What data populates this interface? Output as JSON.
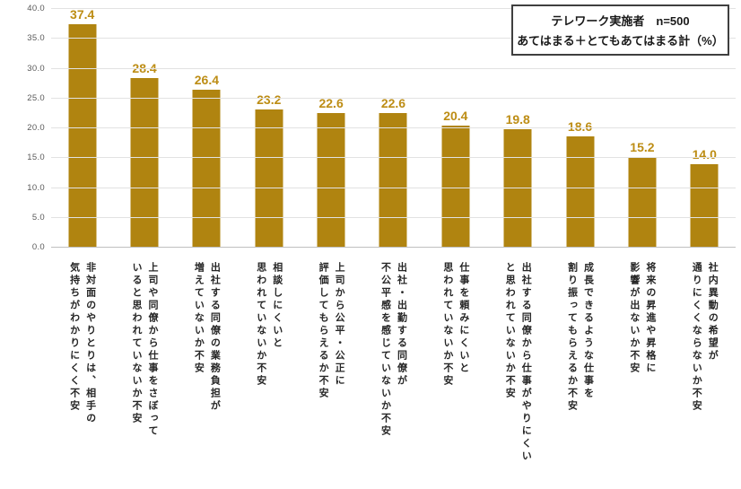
{
  "legend": {
    "line1": "テレワーク実施者　n=500",
    "line2": "あてはまる＋とてもあてはまる計（%）"
  },
  "chart_data": {
    "type": "bar",
    "title": "",
    "xlabel": "",
    "ylabel": "",
    "unit": "%",
    "ylim": [
      0,
      40
    ],
    "ytick_step": 5,
    "ytick_labels": [
      "0.0",
      "5.0",
      "10.0",
      "15.0",
      "20.0",
      "25.0",
      "30.0",
      "35.0",
      "40.0"
    ],
    "grid": true,
    "legend_position": "top-right",
    "legend_text": [
      "テレワーク実施者　n=500",
      "あてはまる＋とてもあてはまる計（%）"
    ],
    "bar_color": "#b08410",
    "value_label_color": "#bd8d15",
    "categories": [
      [
        "非対面のやりとりは、相手の",
        "気持ちがわかりにくく不安"
      ],
      [
        "上司や同僚から仕事をさぼって",
        "いると思われていないか不安"
      ],
      [
        "出社する同僚の業務負担が",
        "増えていないか不安"
      ],
      [
        "相談しにくいと",
        "思われていないか不安"
      ],
      [
        "上司から公平・公正に",
        "評価してもらえるか不安"
      ],
      [
        "出社・出勤する同僚が",
        "不公平感を感じていないか不安"
      ],
      [
        "仕事を頼みにくいと",
        "思われていないか不安"
      ],
      [
        "出社する同僚から仕事がやりにくい",
        "と思われていないか不安"
      ],
      [
        "成長できるような仕事を",
        "割り振ってもらえるか不安"
      ],
      [
        "将来の昇進や昇格に",
        "影響が出ないか不安"
      ],
      [
        "社内異動の希望が",
        "通りにくくならないか不安"
      ]
    ],
    "values": [
      37.4,
      28.4,
      26.4,
      23.2,
      22.6,
      22.6,
      20.4,
      19.8,
      18.6,
      15.2,
      14.0
    ]
  }
}
